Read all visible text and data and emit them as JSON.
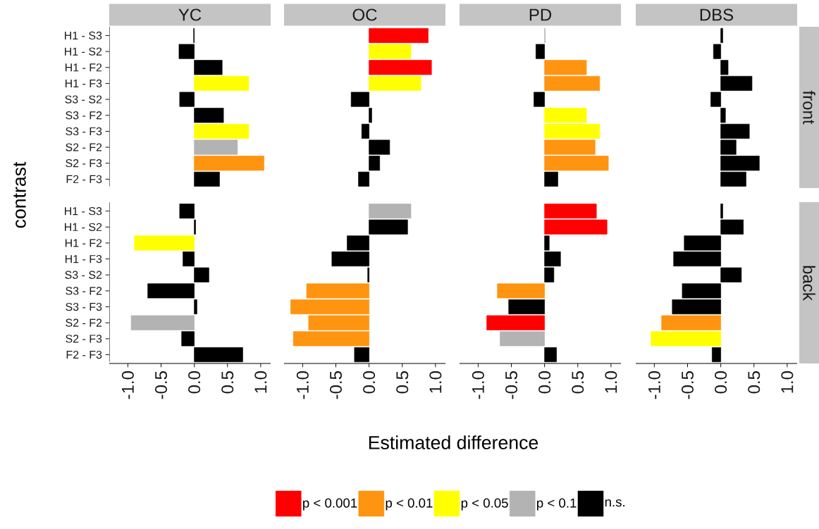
{
  "chart_data": [
    {
      "type": "bar",
      "orientation": "horizontal",
      "title": "YC",
      "ylabel": "contrast",
      "categories": [
        "H1 - S3",
        "H1 - S2",
        "H1 - F2",
        "H1 - F3",
        "S3 - S2",
        "S3 - F2",
        "S3 - F3",
        "S2 - F2",
        "S2 - F3",
        "F2 - F3",
        null,
        "H1 - S3",
        "H1 - S2",
        "H1 - F2",
        "H1 - F3",
        "S3 - S2",
        "S3 - F2",
        "S3 - F3",
        "S2 - F2",
        "S2 - F3",
        "F2 - F3"
      ],
      "xlim": [
        -1.28,
        1.15
      ],
      "xticks": [
        {
          "value": -1,
          "label": "-1.0"
        },
        {
          "value": -0.5,
          "label": "-0.5"
        },
        {
          "value": 0,
          "label": "0.0"
        },
        {
          "value": 0.5,
          "label": "0.5"
        },
        {
          "value": 1,
          "label": "1.0"
        }
      ],
      "series": [
        {
          "color": "#ff9410",
          "values": [
            null,
            null,
            null,
            null,
            null,
            null,
            null,
            null,
            1.05,
            null,
            null,
            null,
            null,
            null,
            null,
            null,
            null,
            null,
            null,
            null,
            null
          ]
        },
        {
          "color": "#ffff00",
          "values": [
            null,
            null,
            null,
            0.82,
            null,
            null,
            0.82,
            null,
            null,
            null,
            null,
            null,
            null,
            -0.9,
            null,
            null,
            null,
            null,
            null,
            null,
            null
          ]
        },
        {
          "color": "#b3b3b3",
          "values": [
            null,
            null,
            null,
            null,
            null,
            null,
            null,
            0.65,
            null,
            null,
            null,
            null,
            null,
            null,
            null,
            null,
            null,
            null,
            -0.95,
            null,
            null
          ]
        },
        {
          "color": "#000000",
          "values": [
            -0.01,
            -0.23,
            0.42,
            null,
            -0.22,
            0.44,
            null,
            null,
            null,
            0.38,
            null,
            -0.22,
            0.02,
            null,
            -0.17,
            0.22,
            -0.7,
            0.04,
            null,
            -0.19,
            0.73
          ]
        }
      ]
    },
    {
      "type": "bar",
      "orientation": "horizontal",
      "title": "OC",
      "xlabel": "Estimated difference",
      "tick_labels": "x",
      "categories": [
        null,
        null,
        null,
        null,
        null,
        null,
        null,
        null,
        null,
        null,
        null,
        null,
        null,
        null,
        null,
        null,
        null,
        null,
        null,
        null,
        null
      ],
      "xlim": [
        -1.28,
        1.15
      ],
      "xticks": [
        {
          "value": -1,
          "label": "-1.0"
        },
        {
          "value": -0.5,
          "label": "-0.5"
        },
        {
          "value": 0,
          "label": "0.0"
        },
        {
          "value": 0.5,
          "label": "0.5"
        },
        {
          "value": 1,
          "label": "1.0"
        }
      ],
      "series": [
        {
          "color": "#ff0000",
          "values": [
            0.89,
            null,
            0.94,
            null,
            null,
            null,
            null,
            null,
            null,
            null,
            null,
            null,
            null,
            null,
            null,
            null,
            null,
            null,
            null,
            null,
            null
          ]
        },
        {
          "color": "#ff9410",
          "values": [
            null,
            null,
            null,
            null,
            null,
            null,
            null,
            null,
            null,
            null,
            null,
            null,
            null,
            null,
            null,
            null,
            -0.94,
            -1.18,
            -0.91,
            -1.14,
            null
          ]
        },
        {
          "color": "#ffff00",
          "values": [
            null,
            0.63,
            null,
            0.78,
            null,
            null,
            null,
            null,
            null,
            null,
            null,
            null,
            null,
            null,
            null,
            null,
            null,
            null,
            null,
            null,
            null
          ]
        },
        {
          "color": "#b3b3b3",
          "values": [
            null,
            null,
            null,
            null,
            null,
            null,
            null,
            null,
            null,
            null,
            null,
            0.63,
            null,
            null,
            null,
            null,
            null,
            null,
            null,
            null,
            null
          ]
        },
        {
          "color": "#000000",
          "values": [
            null,
            null,
            null,
            null,
            -0.27,
            0.04,
            -0.11,
            0.31,
            0.16,
            -0.16,
            null,
            null,
            0.58,
            -0.33,
            -0.56,
            -0.02,
            null,
            null,
            null,
            null,
            -0.22
          ]
        }
      ]
    },
    {
      "type": "bar",
      "orientation": "horizontal",
      "title": "PD",
      "tick_labels": "x",
      "categories": [
        null,
        null,
        null,
        null,
        null,
        null,
        null,
        null,
        null,
        null,
        null,
        null,
        null,
        null,
        null,
        null,
        null,
        null,
        null,
        null,
        null
      ],
      "xlim": [
        -1.28,
        1.15
      ],
      "xticks": [
        {
          "value": -1,
          "label": "-1.0"
        },
        {
          "value": -0.5,
          "label": "-0.5"
        },
        {
          "value": 0,
          "label": "0.0"
        },
        {
          "value": 0.5,
          "label": "0.5"
        },
        {
          "value": 1,
          "label": "1.0"
        }
      ],
      "series": [
        {
          "color": "#ff0000",
          "values": [
            null,
            null,
            null,
            null,
            null,
            null,
            null,
            null,
            null,
            null,
            null,
            0.78,
            0.94,
            null,
            null,
            null,
            null,
            null,
            -0.87,
            null,
            null
          ]
        },
        {
          "color": "#ff9410",
          "values": [
            null,
            null,
            0.63,
            0.83,
            null,
            null,
            null,
            0.76,
            0.96,
            null,
            null,
            null,
            null,
            null,
            null,
            null,
            -0.71,
            null,
            null,
            null,
            null
          ]
        },
        {
          "color": "#ffff00",
          "values": [
            null,
            null,
            null,
            null,
            null,
            0.63,
            0.83,
            null,
            null,
            null,
            null,
            null,
            null,
            null,
            null,
            null,
            null,
            null,
            null,
            null,
            null
          ]
        },
        {
          "color": "#b3b3b3",
          "values": [
            0.01,
            null,
            null,
            null,
            null,
            null,
            null,
            null,
            null,
            null,
            null,
            null,
            null,
            null,
            null,
            null,
            null,
            null,
            null,
            -0.67,
            null
          ]
        },
        {
          "color": "#000000",
          "values": [
            null,
            -0.13,
            null,
            null,
            -0.16,
            null,
            null,
            null,
            null,
            0.2,
            null,
            null,
            null,
            0.07,
            0.24,
            0.14,
            null,
            -0.54,
            null,
            null,
            0.18
          ]
        }
      ]
    },
    {
      "type": "bar",
      "orientation": "horizontal",
      "title": "DBS",
      "annotations": [
        "front",
        "back"
      ],
      "legend": "bottom",
      "tick_labels": "x",
      "categories": [
        null,
        null,
        null,
        null,
        null,
        null,
        null,
        null,
        null,
        null,
        null,
        null,
        null,
        null,
        null,
        null,
        null,
        null,
        null,
        null,
        null
      ],
      "xlim": [
        -1.28,
        1.15
      ],
      "xticks": [
        {
          "value": -1,
          "label": "-1.0"
        },
        {
          "value": -0.5,
          "label": "-0.5"
        },
        {
          "value": 0,
          "label": "0.0"
        },
        {
          "value": 0.5,
          "label": "0.5"
        },
        {
          "value": 1,
          "label": "1.0"
        }
      ],
      "series": [
        {
          "name": "p < 0.001",
          "color": "#ff0000",
          "values": [
            null,
            null,
            null,
            null,
            null,
            null,
            null,
            null,
            null,
            null,
            null,
            null,
            null,
            null,
            null,
            null,
            null,
            null,
            null,
            null,
            null
          ]
        },
        {
          "name": "p < 0.01",
          "color": "#ff9410",
          "values": [
            null,
            null,
            null,
            null,
            null,
            null,
            null,
            null,
            null,
            null,
            null,
            null,
            null,
            null,
            null,
            null,
            null,
            null,
            -0.89,
            null,
            null
          ]
        },
        {
          "name": "p < 0.05",
          "color": "#ffff00",
          "values": [
            null,
            null,
            null,
            null,
            null,
            null,
            null,
            null,
            null,
            null,
            null,
            null,
            null,
            null,
            null,
            null,
            null,
            null,
            null,
            -1.05,
            null
          ]
        },
        {
          "name": "p < 0.1",
          "color": "#b3b3b3",
          "values": [
            null,
            null,
            null,
            null,
            null,
            null,
            null,
            null,
            null,
            null,
            null,
            null,
            null,
            null,
            null,
            null,
            null,
            null,
            null,
            null,
            null
          ]
        },
        {
          "name": "n.s.",
          "color": "#000000",
          "values": [
            0.03,
            -0.11,
            0.11,
            0.47,
            -0.15,
            0.07,
            0.43,
            0.23,
            0.58,
            0.38,
            null,
            0.03,
            0.34,
            -0.55,
            -0.71,
            0.31,
            -0.58,
            -0.73,
            null,
            null,
            -0.13
          ]
        }
      ]
    }
  ]
}
